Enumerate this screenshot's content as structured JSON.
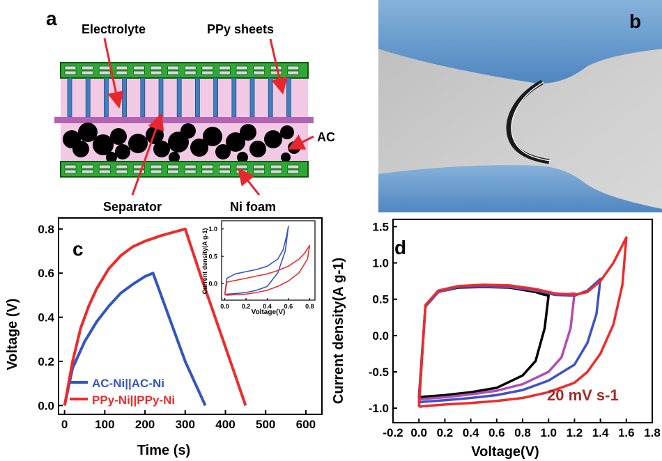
{
  "panel_a": {
    "letter": "a",
    "labels": {
      "electrolyte": "Electrolyte",
      "ppy_sheets": "PPy sheets",
      "ac": "AC",
      "separator": "Separator",
      "ni_foam": "Ni foam"
    },
    "colors": {
      "frame_green": "#2fa836",
      "frame_dark": "#0d5a14",
      "pink": "#f2c9e4",
      "separator": "#b463b4",
      "pillar": "#3f7fc0",
      "arrow": "#e8262d",
      "particle": "#000000"
    }
  },
  "panel_b": {
    "letter": "b",
    "image": "photo-flexible-device-bent-between-gloved-fingers"
  },
  "chart_data": [
    {
      "id": "c",
      "type": "line",
      "letter": "c",
      "xlabel": "Time (s)",
      "ylabel": "Voltage (V)",
      "xlim": [
        -15,
        640
      ],
      "ylim": [
        -0.04,
        0.85
      ],
      "xticks": [
        "0",
        "100",
        "200",
        "300",
        "400",
        "500",
        "600"
      ],
      "yticks": [
        "0.0",
        "0.2",
        "0.4",
        "0.6",
        "0.8"
      ],
      "legend_position": "bottom-left",
      "series": [
        {
          "name": "AC-Ni||AC-Ni",
          "color": "#3355c4",
          "x": [
            0,
            20,
            50,
            80,
            110,
            140,
            170,
            200,
            220,
            260,
            300,
            350
          ],
          "y": [
            0.0,
            0.17,
            0.29,
            0.38,
            0.45,
            0.51,
            0.55,
            0.585,
            0.6,
            0.4,
            0.2,
            0.0
          ]
        },
        {
          "name": "PPy-Ni||PPy-Ni",
          "color": "#ee2b2b",
          "x": [
            0,
            20,
            40,
            60,
            80,
            110,
            140,
            170,
            200,
            240,
            280,
            300,
            340,
            380,
            420,
            450
          ],
          "y": [
            0.0,
            0.2,
            0.35,
            0.45,
            0.53,
            0.62,
            0.68,
            0.72,
            0.745,
            0.77,
            0.79,
            0.8,
            0.58,
            0.37,
            0.16,
            0.0
          ]
        }
      ],
      "inset": {
        "xlabel": "Voltage(V)",
        "ylabel": "Current density(A g-1)",
        "xlim": [
          -0.03,
          0.85
        ],
        "ylim": [
          -0.3,
          1.15
        ],
        "xticks": [
          "0.0",
          "0.2",
          "0.4",
          "0.6",
          "0.8"
        ],
        "yticks": [
          "0.0",
          "0.5",
          "1.0"
        ],
        "series": [
          {
            "color": "#3355c4",
            "x": [
              0.0,
              0.02,
              0.1,
              0.2,
              0.3,
              0.4,
              0.5,
              0.55,
              0.58,
              0.6,
              0.57,
              0.5,
              0.4,
              0.3,
              0.2,
              0.1,
              0.02,
              0.0
            ],
            "y": [
              -0.2,
              0.1,
              0.18,
              0.22,
              0.26,
              0.32,
              0.45,
              0.62,
              0.85,
              1.05,
              0.6,
              0.2,
              -0.05,
              -0.12,
              -0.16,
              -0.18,
              -0.19,
              -0.2
            ]
          },
          {
            "color": "#ee2b2b",
            "x": [
              0.0,
              0.02,
              0.1,
              0.2,
              0.3,
              0.4,
              0.5,
              0.6,
              0.7,
              0.75,
              0.8,
              0.78,
              0.7,
              0.6,
              0.5,
              0.4,
              0.3,
              0.2,
              0.1,
              0.02,
              0.0
            ],
            "y": [
              -0.2,
              0.03,
              0.06,
              0.1,
              0.14,
              0.18,
              0.24,
              0.32,
              0.45,
              0.55,
              0.7,
              0.45,
              0.2,
              0.05,
              -0.05,
              -0.12,
              -0.16,
              -0.19,
              -0.2,
              -0.21,
              -0.2
            ]
          }
        ]
      }
    },
    {
      "id": "d",
      "type": "line",
      "letter": "d",
      "xlabel": "Voltage(V)",
      "ylabel": "Current density(A g-1)",
      "annotation": "20 mV s-1",
      "xlim": [
        -0.2,
        1.8
      ],
      "ylim": [
        -1.2,
        1.6
      ],
      "xticks": [
        "-0.2",
        "0.0",
        "0.2",
        "0.4",
        "0.6",
        "0.8",
        "1.0",
        "1.2",
        "1.4",
        "1.6",
        "1.8"
      ],
      "yticks": [
        "-1.0",
        "-0.5",
        "0.0",
        "0.5",
        "1.0",
        "1.5"
      ],
      "series": [
        {
          "color": "#000000",
          "x": [
            0.0,
            0.05,
            0.15,
            0.3,
            0.5,
            0.7,
            0.9,
            0.95,
            1.0,
            0.97,
            0.9,
            0.8,
            0.6,
            0.4,
            0.2,
            0.05,
            0.0
          ],
          "y": [
            -0.85,
            0.4,
            0.6,
            0.66,
            0.67,
            0.66,
            0.6,
            0.57,
            0.55,
            0.1,
            -0.35,
            -0.55,
            -0.72,
            -0.78,
            -0.82,
            -0.84,
            -0.85
          ]
        },
        {
          "color": "#b34cb3",
          "x": [
            0.0,
            0.05,
            0.15,
            0.3,
            0.5,
            0.7,
            0.9,
            1.05,
            1.15,
            1.2,
            1.17,
            1.1,
            1.0,
            0.8,
            0.6,
            0.4,
            0.2,
            0.05,
            0.0
          ],
          "y": [
            -0.88,
            0.4,
            0.6,
            0.67,
            0.68,
            0.67,
            0.62,
            0.57,
            0.57,
            0.58,
            0.1,
            -0.3,
            -0.5,
            -0.67,
            -0.76,
            -0.81,
            -0.85,
            -0.87,
            -0.88
          ]
        },
        {
          "color": "#3f51c8",
          "x": [
            0.0,
            0.05,
            0.15,
            0.3,
            0.5,
            0.7,
            0.9,
            1.05,
            1.2,
            1.3,
            1.4,
            1.37,
            1.3,
            1.2,
            1.0,
            0.8,
            0.6,
            0.4,
            0.2,
            0.05,
            0.0
          ],
          "y": [
            -0.92,
            0.4,
            0.61,
            0.67,
            0.69,
            0.68,
            0.63,
            0.56,
            0.55,
            0.62,
            0.78,
            0.3,
            -0.1,
            -0.4,
            -0.62,
            -0.75,
            -0.82,
            -0.86,
            -0.89,
            -0.91,
            -0.92
          ]
        },
        {
          "color": "#ee2b2b",
          "x": [
            0.0,
            0.05,
            0.15,
            0.3,
            0.5,
            0.7,
            0.9,
            1.05,
            1.2,
            1.3,
            1.4,
            1.5,
            1.6,
            1.57,
            1.5,
            1.4,
            1.3,
            1.2,
            1.0,
            0.8,
            0.6,
            0.4,
            0.2,
            0.05,
            0.0
          ],
          "y": [
            -0.98,
            0.42,
            0.62,
            0.68,
            0.7,
            0.69,
            0.64,
            0.58,
            0.56,
            0.6,
            0.75,
            1.0,
            1.35,
            0.7,
            0.15,
            -0.25,
            -0.5,
            -0.65,
            -0.78,
            -0.86,
            -0.9,
            -0.93,
            -0.95,
            -0.97,
            -0.98
          ]
        }
      ]
    }
  ]
}
